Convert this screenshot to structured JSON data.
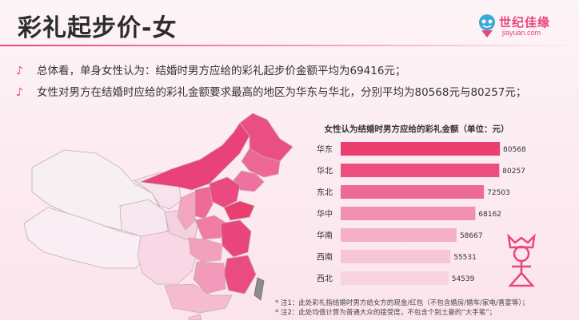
{
  "header": {
    "title": "彩礼起步价-女",
    "logo_text": "世纪佳缘",
    "logo_sub": "jiayuan.com"
  },
  "bullets": [
    "总体看，单身女性认为：结婚时男方应给的彩礼起步价金额平均为69416元；",
    "女性对男方在结婚时应给的彩礼金额要求最高的地区为华东与华北，分别平均为80568元与80257元；"
  ],
  "colors": {
    "accent": "#e8467c",
    "bar_scale": [
      "#e83f6f",
      "#ea4f7e",
      "#ed6a95",
      "#f08fb2",
      "#f4b0c9",
      "#f7c6d8",
      "#f9d3e1"
    ]
  },
  "chart_data": {
    "type": "bar",
    "orientation": "horizontal",
    "title": "女性认为结婚时男方应给的彩礼金额（单位：元）",
    "categories": [
      "华东",
      "华北",
      "东北",
      "华中",
      "华南",
      "西南",
      "西北"
    ],
    "values": [
      80568,
      80257,
      72503,
      68162,
      58667,
      55531,
      54539
    ],
    "xlim": [
      0,
      85000
    ],
    "grid": false,
    "legend": "none",
    "data_labels": true
  },
  "notes": [
    "* 注1：此处彩礼指结婚时男方给女方的现金/红包（不包含婚房/婚车/家电/喜宴等）；",
    "* 注2：此处均值计算为普通大众的接受度，不包含个别土豪的“大手笔”；"
  ]
}
